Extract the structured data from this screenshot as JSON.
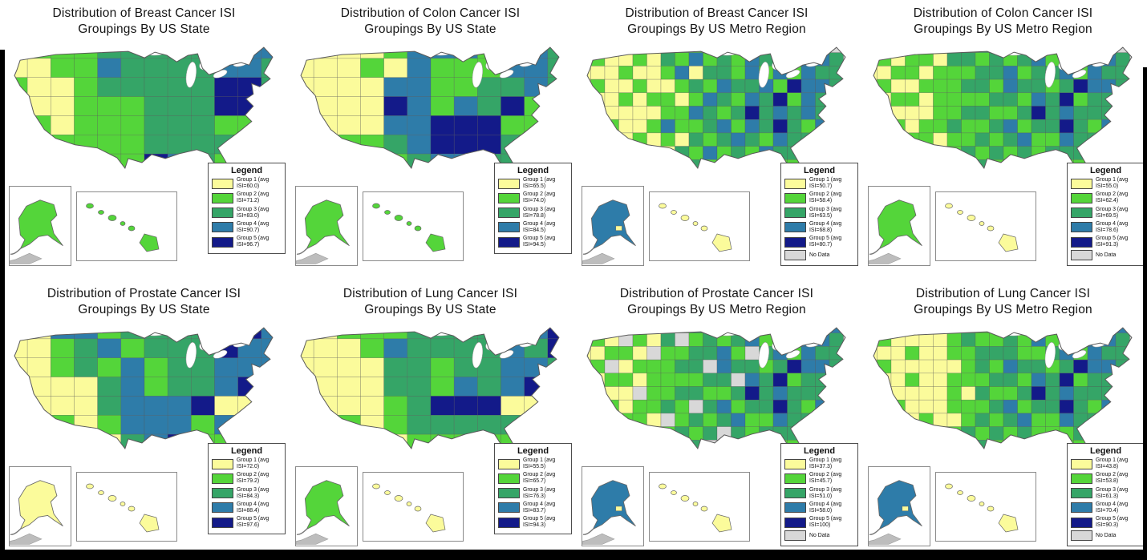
{
  "figure": {
    "colors": {
      "group1": "#FBFB9B",
      "group2": "#54D53A",
      "group3": "#35A567",
      "group4": "#2E7CA9",
      "group5": "#131A89",
      "no_data": "#D8D8D8",
      "state_border": "#6f6f6f",
      "outline": "#5a5a5a"
    },
    "panels": [
      {
        "id": "breast-state",
        "title_line1": "Distribution of Breast Cancer ISI",
        "title_line2": "Groupings By US State",
        "legend": {
          "title": "Legend",
          "entries": [
            {
              "group": 1,
              "label_line1": "Group 1 (avg",
              "label_line2": "ISI=60.0)"
            },
            {
              "group": 2,
              "label_line1": "Group 2 (avg",
              "label_line2": "ISI=71.2)"
            },
            {
              "group": 3,
              "label_line1": "Group 3 (avg",
              "label_line2": "ISI=83.0)"
            },
            {
              "group": 4,
              "label_line1": "Group 4 (avg",
              "label_line2": "ISI=90.7)"
            },
            {
              "group": 5,
              "label_line1": "Group 5 (avg",
              "label_line2": "ISI=96.7)"
            }
          ],
          "no_data_label": null
        },
        "map": {
          "cols": 12,
          "rows": 7,
          "alaska_group": 2,
          "hawaii_group": 2,
          "alaska_speck": false,
          "cells": "222233333444112243333443211233333553211222333555221222333225222222333333222222543222"
        }
      },
      {
        "id": "colon-state",
        "title_line1": "Distribution of Colon Cancer ISI",
        "title_line2": "Groupings By US State",
        "legend": {
          "title": "Legend",
          "entries": [
            {
              "group": 1,
              "label_line1": "Group 1 (avg",
              "label_line2": "ISI=65.5)"
            },
            {
              "group": 2,
              "label_line1": "Group 2 (avg",
              "label_line2": "ISI=74.0)"
            },
            {
              "group": 3,
              "label_line1": "Group 3 (avg",
              "label_line2": "ISI=78.8)"
            },
            {
              "group": 4,
              "label_line1": "Group 4 (avg",
              "label_line2": "ISI=84.5)"
            },
            {
              "group": 5,
              "label_line1": "Group 5 (avg",
              "label_line2": "ISI=94.5)"
            }
          ],
          "no_data_label": null
        },
        "map": {
          "cols": 12,
          "rows": 7,
          "alaska_group": 2,
          "hawaii_group": 2,
          "alaska_speck": false,
          "cells": "111124442443111214222443111144223343111154243524111144555225112234555333122223443343"
        }
      },
      {
        "id": "breast-metro",
        "title_line1": "Distribution of Breast Cancer ISI",
        "title_line2": "Groupings By US Metro Region",
        "legend": {
          "title": "Legend",
          "entries": [
            {
              "group": 1,
              "label_line1": "Group 1 (avg",
              "label_line2": "ISI=50.7)"
            },
            {
              "group": 2,
              "label_line1": "Group 2 (avg",
              "label_line2": "ISI=58.4)"
            },
            {
              "group": 3,
              "label_line1": "Group 3 (avg",
              "label_line2": "ISI=63.5)"
            },
            {
              "group": 4,
              "label_line1": "Group 4 (avg",
              "label_line2": "ISI=68.8)"
            },
            {
              "group": 5,
              "label_line1": "Group 5 (avg",
              "label_line2": "ISI=80.7)"
            }
          ],
          "no_data_label": "No Data"
        },
        "map": {
          "cols": 20,
          "rows": 10,
          "alaska_group": 4,
          "hawaii_group": 1,
          "alaska_speck": true,
          "cells": "11211213232334243400121121324232433344301112112413324242433412112112324334254433111212212432435243531211112243235343432411211242234243532433111121213234324333401211121324232433232211121122323243223222"
        }
      },
      {
        "id": "colon-metro",
        "title_line1": "Distribution of Colon Cancer ISI",
        "title_line2": "Groupings By US Metro Region",
        "legend": {
          "title": "Legend",
          "entries": [
            {
              "group": 1,
              "label_line1": "Group 1 (avg",
              "label_line2": "ISI=55.0)"
            },
            {
              "group": 2,
              "label_line1": "Group 2 (avg",
              "label_line2": "ISI=62.4)"
            },
            {
              "group": 3,
              "label_line1": "Group 3 (avg",
              "label_line2": "ISI=69.5)"
            },
            {
              "group": 4,
              "label_line1": "Group 4 (avg",
              "label_line2": "ISI=78.6)"
            },
            {
              "group": 5,
              "label_line1": "Group 5 (avg",
              "label_line2": "ISI=91.3)"
            }
          ],
          "no_data_label": "No Data"
        },
        "map": {
          "cols": 20,
          "rows": 10,
          "alaska_group": 2,
          "hawaii_group": 1,
          "alaska_speck": false,
          "cells": "12211222323323243300121221332323423344301122122233423342433312112223324332354432112212222332435233431211122332235343332411212232234233532423111221223234224332301211122323232333232211122122323232223222"
        }
      },
      {
        "id": "prostate-state",
        "title_line1": "Distribution of Prostate Cancer ISI",
        "title_line2": "Groupings By US State",
        "legend": {
          "title": "Legend",
          "entries": [
            {
              "group": 1,
              "label_line1": "Group 1 (avg",
              "label_line2": "ISI=72.0)"
            },
            {
              "group": 2,
              "label_line1": "Group 2 (avg",
              "label_line2": "ISI=79.2)"
            },
            {
              "group": 3,
              "label_line1": "Group 3 (avg",
              "label_line2": "ISI=84.3)"
            },
            {
              "group": 4,
              "label_line1": "Group 4 (avg",
              "label_line2": "ISI=88.4)"
            },
            {
              "group": 5,
              "label_line1": "Group 5 (avg",
              "label_line2": "ISI=97.6)"
            }
          ],
          "no_data_label": null
        },
        "map": {
          "cols": 12,
          "rows": 7,
          "alaska_group": 1,
          "hawaii_group": 1,
          "alaska_speck": false,
          "cells": "114423333554112342333544112324233444111134233455111134445115122124442443112113452242"
        }
      },
      {
        "id": "lung-state",
        "title_line1": "Distribution of Lung Cancer ISI",
        "title_line2": "Groupings By US State",
        "legend": {
          "title": "Legend",
          "entries": [
            {
              "group": 1,
              "label_line1": "Group 1 (avg",
              "label_line2": "ISI=55.5)"
            },
            {
              "group": 2,
              "label_line1": "Group 2 (avg",
              "label_line2": "ISI=65.7)"
            },
            {
              "group": 3,
              "label_line1": "Group 3 (avg",
              "label_line2": "ISI=76.3)"
            },
            {
              "group": 4,
              "label_line1": "Group 4 (avg",
              "label_line2": "ISI=83.7)"
            },
            {
              "group": 5,
              "label_line1": "Group 5 (avg",
              "label_line2": "ISI=94.3)"
            }
          ],
          "no_data_label": null
        },
        "map": {
          "cols": 12,
          "rows": 7,
          "alaska_group": 2,
          "hawaii_group": 1,
          "alaska_speck": false,
          "cells": "112223333445111243333435111133233443111133243452111123555114122123333333112112222222"
        }
      },
      {
        "id": "prostate-metro",
        "title_line1": "Distribution of Prostate Cancer ISI",
        "title_line2": "Groupings By US Metro Region",
        "legend": {
          "title": "Legend",
          "entries": [
            {
              "group": 1,
              "label_line1": "Group 1 (avg",
              "label_line2": "ISI=37.3)"
            },
            {
              "group": 2,
              "label_line1": "Group 2 (avg",
              "label_line2": "ISI=45.7)"
            },
            {
              "group": 3,
              "label_line1": "Group 3 (avg",
              "label_line2": "ISI=51.0)"
            },
            {
              "group": 4,
              "label_line1": "Group 4 (avg",
              "label_line2": "ISI=58.0)"
            },
            {
              "group": 5,
              "label_line1": "Group 5 (avg",
              "label_line2": "ISI=100)"
            }
          ],
          "no_data_label": "No Data"
        },
        "map": {
          "cols": 20,
          "rows": 10,
          "alaska_group": 4,
          "hawaii_group": 1,
          "alaska_speck": true,
          "cells": "10211202322333243340121021302323423344301122102233420342433312012223304332354432112212222330435233401211022332235343332411212232034233532423111221023234224332301211122323032333232211122122303232223222"
        }
      },
      {
        "id": "lung-metro",
        "title_line1": "Distribution of Lung Cancer ISI",
        "title_line2": "Groupings By US Metro Region",
        "legend": {
          "title": "Legend",
          "entries": [
            {
              "group": 1,
              "label_line1": "Group 1 (avg",
              "label_line2": "ISI=43.8)"
            },
            {
              "group": 2,
              "label_line1": "Group 2 (avg",
              "label_line2": "ISI=53.8)"
            },
            {
              "group": 3,
              "label_line1": "Group 3 (avg",
              "label_line2": "ISI=61.3)"
            },
            {
              "group": 4,
              "label_line1": "Group 4 (avg",
              "label_line2": "ISI=70.4)"
            },
            {
              "group": 5,
              "label_line1": "Group 5 (avg",
              "label_line2": "ISI=90.3)"
            }
          ],
          "no_data_label": "No Data"
        },
        "map": {
          "cols": 20,
          "rows": 10,
          "alaska_group": 4,
          "hawaii_group": 1,
          "alaska_speck": true,
          "cells": "11211122232333243340121111232232423344301112112233322342433312111112324332354432111211222332435233431211112132235343332411211122234233532423111121123234224332301211112323232223323211121122323232223222"
        }
      }
    ]
  }
}
